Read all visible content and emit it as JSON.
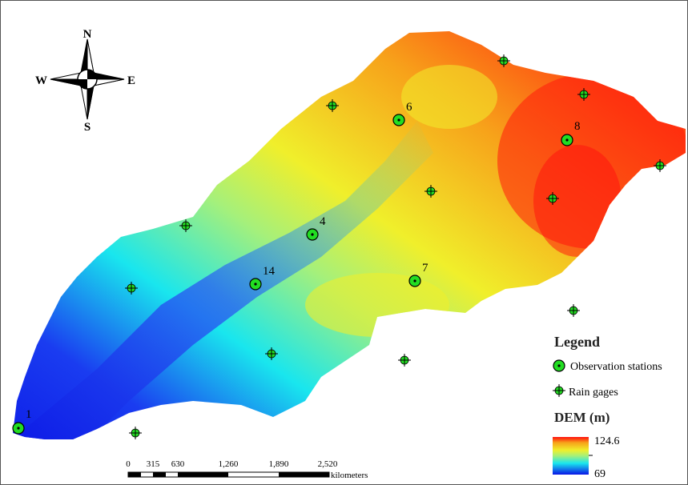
{
  "compass": {
    "n": "N",
    "s": "S",
    "e": "E",
    "w": "W"
  },
  "legend": {
    "title": "Legend",
    "observation_label": "Observation stations",
    "rain_label": "Rain gages",
    "dem_title": "DEM (m)",
    "dem_max": "124.6",
    "dem_min": "69"
  },
  "scale": {
    "ticks": [
      "0",
      "315",
      "630",
      "1,260",
      "1,890",
      "2,520"
    ],
    "unit": "kilometers"
  },
  "stations": [
    {
      "id": "1",
      "label": "1"
    },
    {
      "id": "4",
      "label": "4"
    },
    {
      "id": "6",
      "label": "6"
    },
    {
      "id": "7",
      "label": "7"
    },
    {
      "id": "8",
      "label": "8"
    },
    {
      "id": "14",
      "label": "14"
    }
  ],
  "colors": {
    "dem_low": "#0a14e6",
    "dem_mid_low": "#19e6ee",
    "dem_mid": "#f0ef2b",
    "dem_mid_high": "#f7a21a",
    "dem_high": "#ff0d0d",
    "marker": "#22dd22"
  }
}
